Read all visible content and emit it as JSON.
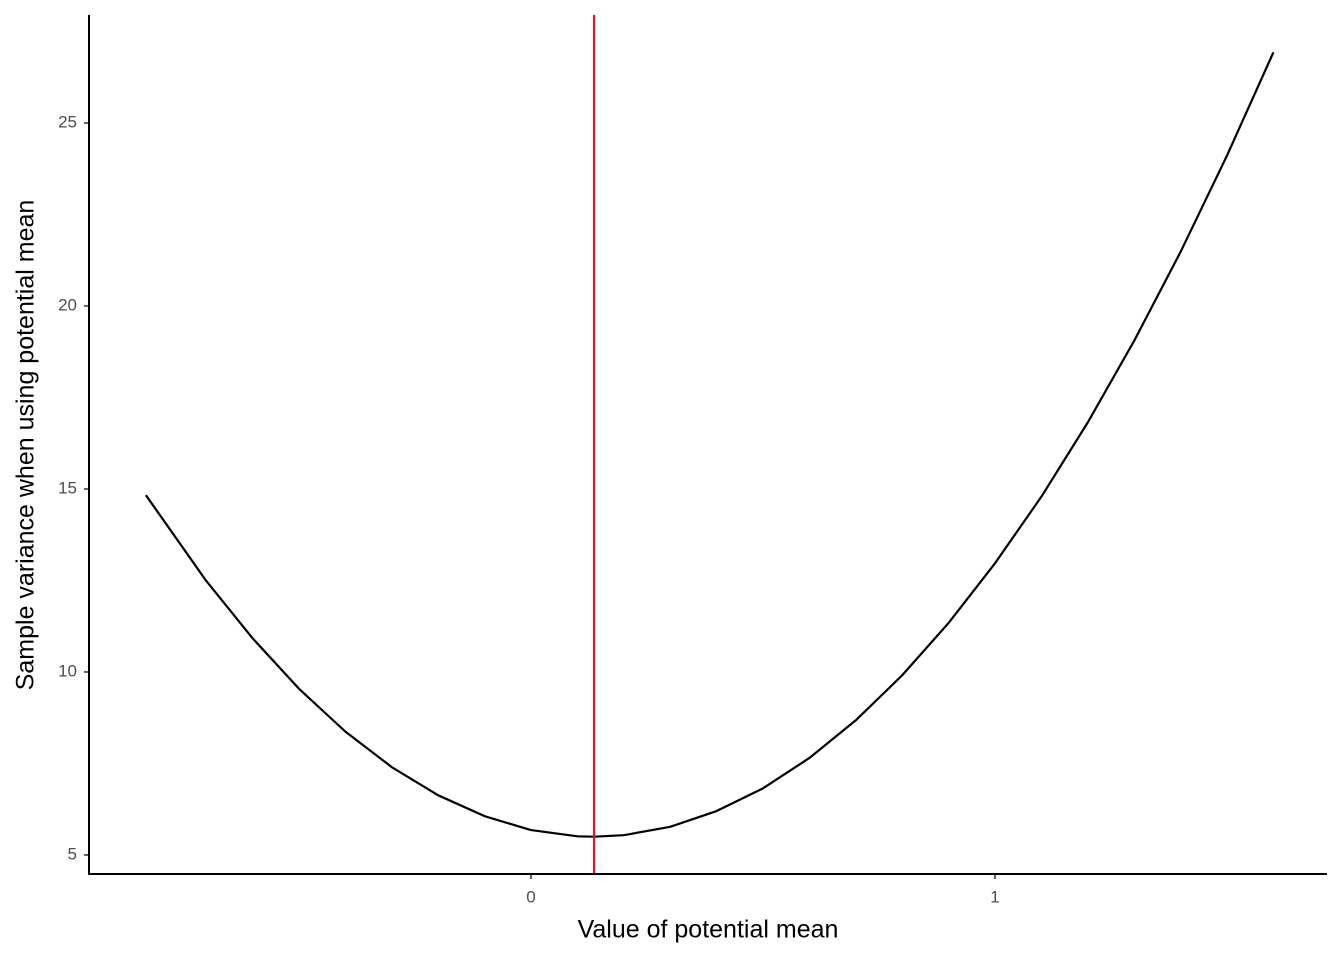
{
  "chart_data": {
    "type": "line",
    "x_label": "Value of potential mean",
    "y_label": "Sample variance when using potential mean",
    "x": [
      -0.83,
      -0.7,
      -0.6,
      -0.5,
      -0.4,
      -0.3,
      -0.2,
      -0.1,
      0,
      0.1,
      0.136,
      0.2,
      0.3,
      0.4,
      0.5,
      0.6,
      0.7,
      0.8,
      0.9,
      1.0,
      1.1,
      1.2,
      1.3,
      1.4,
      1.5,
      1.6
    ],
    "series": [
      {
        "color": "#000000",
        "values": [
          14.83,
          12.49,
          10.92,
          9.54,
          8.37,
          7.4,
          6.63,
          6.06,
          5.68,
          5.51,
          5.5,
          5.54,
          5.77,
          6.2,
          6.82,
          7.65,
          8.68,
          9.91,
          11.34,
          12.97,
          14.79,
          16.82,
          19.05,
          21.48,
          24.11,
          26.93
        ]
      }
    ],
    "vline": {
      "x": 0.136,
      "color": "#e8101f"
    },
    "xlim": [
      -0.9526,
      1.7155
    ],
    "xticks": [
      0,
      1
    ],
    "ylim": [
      4.48,
      27.95
    ],
    "yticks": [
      5,
      10,
      15,
      20,
      25
    ],
    "grid": false
  }
}
